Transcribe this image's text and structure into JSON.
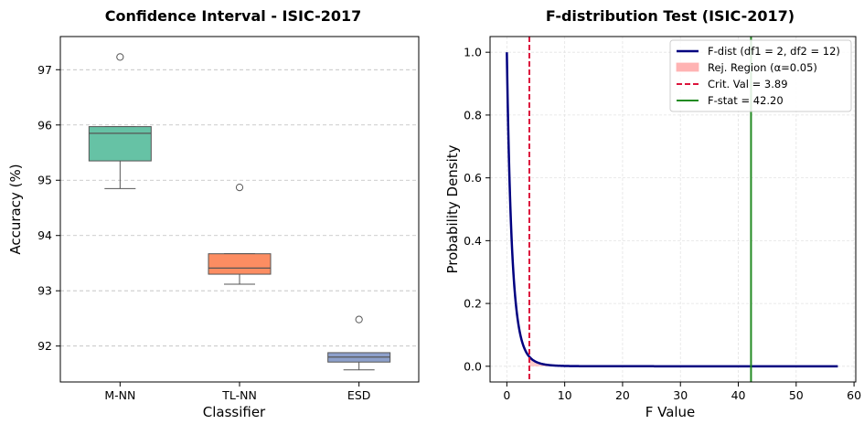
{
  "chart_data": [
    {
      "type": "box",
      "title": "Confidence Interval - ISIC-2017",
      "xlabel": "Classifier",
      "ylabel": "Accuracy (%)",
      "ylim": [
        91.35,
        97.6
      ],
      "yticks": [
        "92",
        "93",
        "94",
        "95",
        "96",
        "97"
      ],
      "grid": "y-dashed",
      "categories": [
        "M-NN",
        "TL-NN",
        "ESD"
      ],
      "boxes": [
        {
          "name": "M-NN",
          "color": "#66c2a5",
          "whisker_low": 94.85,
          "q1": 95.35,
          "median": 95.85,
          "q3": 95.97,
          "whisker_high": 95.97,
          "outliers": [
            97.23
          ]
        },
        {
          "name": "TL-NN",
          "color": "#fc8d62",
          "whisker_low": 93.12,
          "q1": 93.3,
          "median": 93.41,
          "q3": 93.67,
          "whisker_high": 93.67,
          "outliers": [
            94.87
          ]
        },
        {
          "name": "ESD",
          "color": "#8da0cb",
          "whisker_low": 91.57,
          "q1": 91.71,
          "median": 91.8,
          "q3": 91.88,
          "whisker_high": 91.88,
          "outliers": [
            92.48
          ]
        }
      ]
    },
    {
      "type": "line",
      "title": "F-distribution Test (ISIC-2017)",
      "xlabel": "F Value",
      "ylabel": "Probability Density",
      "xlim": [
        -2.9,
        60.3
      ],
      "ylim": [
        -0.05,
        1.05
      ],
      "xticks": [
        "0",
        "10",
        "20",
        "30",
        "40",
        "50",
        "60"
      ],
      "yticks": [
        "0.0",
        "0.2",
        "0.4",
        "0.6",
        "0.8",
        "1.0"
      ],
      "grid": "both",
      "legend_position": "top-right",
      "df1": 2,
      "df2": 12,
      "alpha": 0.05,
      "critical_value": 3.89,
      "f_stat": 42.2,
      "x_range": [
        0,
        57.2
      ],
      "colors": {
        "curve": "#000080",
        "region": "#ffb3b3",
        "critical": "#dc143c",
        "fstat": "#228b22"
      },
      "legend": {
        "curve": "F-dist (df1 = 2, df2 = 12)",
        "region": "Rej. Region (α=0.05)",
        "critical": "Crit. Val = 3.89",
        "fstat": "F-stat = 42.20"
      }
    }
  ]
}
